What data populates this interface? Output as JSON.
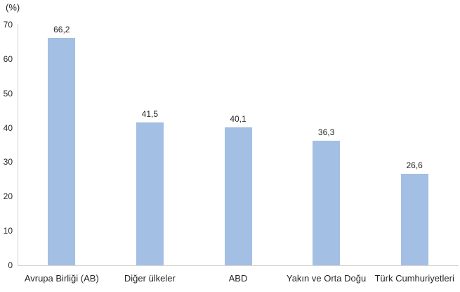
{
  "chart_data": {
    "type": "bar",
    "title": "",
    "ylabel": "(%)",
    "xlabel": "",
    "categories": [
      "Avrupa Birliği (AB)",
      "Diğer ülkeler",
      "ABD",
      "Yakın ve Orta Doğu",
      "Türk Cumhuriyetleri"
    ],
    "values": [
      66.2,
      41.5,
      40.1,
      36.3,
      26.6
    ],
    "value_labels": [
      "66,2",
      "41,5",
      "40,1",
      "36,3",
      "26,6"
    ],
    "ylim": [
      0,
      70
    ],
    "yticks": [
      0,
      10,
      20,
      30,
      40,
      50,
      60,
      70
    ],
    "grid": false,
    "legend_position": "none",
    "bar_color": "#A3BFE3",
    "axis_color": "#D3D3D3",
    "text_color": "#262626",
    "background_color": "#FFFFFF"
  }
}
